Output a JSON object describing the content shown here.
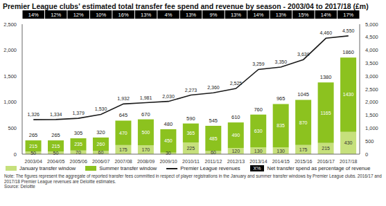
{
  "chart_data": {
    "type": "bar",
    "title": "Premier League clubs' estimated total transfer fee spend and revenue by season - 2003/04 to 2017/18 (£m)",
    "categories": [
      "2003/04",
      "2004/05",
      "2005/06",
      "2006/07",
      "2007/08",
      "2008/09",
      "2009/10",
      "2010/11",
      "2011/12",
      "2012/13",
      "2013/14",
      "2014/15",
      "2015/16",
      "2016/17",
      "2017/18"
    ],
    "stacked": true,
    "data_labels": true,
    "grid": false,
    "legend": "bottom",
    "series": [
      {
        "name": "January transfer window",
        "type": "bar",
        "color": "#c6e07c",
        "values": [
          50,
          50,
          70,
          60,
          175,
          170,
          30,
          225,
          60,
          120,
          130,
          130,
          175,
          215,
          430
        ]
      },
      {
        "name": "Summer transfer window",
        "type": "bar",
        "color": "#8cc21f",
        "values": [
          215,
          215,
          235,
          260,
          470,
          500,
          450,
          365,
          485,
          490,
          630,
          835,
          870,
          1165,
          1430
        ]
      },
      {
        "name": "Premier League revenues",
        "type": "line",
        "axis": "y2",
        "color": "#1a1a1a",
        "marker": "none",
        "values": [
          1326,
          1334,
          1379,
          1530,
          1932,
          1981,
          2030,
          2273,
          2360,
          2525,
          3259,
          3350,
          3639,
          4460,
          4550
        ],
        "value_labels": [
          "1,326",
          "1,334",
          "1,379",
          "1,530",
          "1,932",
          "1,981",
          "2,030",
          "2,273",
          "2,360",
          "2,525",
          "3,259",
          "3,350",
          "3,639",
          "4,460",
          "4,550"
        ]
      }
    ],
    "totals": [
      265,
      265,
      305,
      320,
      645,
      670,
      480,
      590,
      545,
      610,
      760,
      965,
      1045,
      1380,
      1860
    ],
    "net_spend_pct": {
      "name": "Net transfer spend as percentage of revenue",
      "symbol": "X%",
      "color": "#000000",
      "values": [
        14,
        12,
        12,
        10,
        16,
        13,
        4,
        13,
        9,
        13,
        14,
        13,
        15,
        14,
        17
      ],
      "value_labels": [
        "14%",
        "12%",
        "12%",
        "10%",
        "16%",
        "13%",
        "4%",
        "13%",
        "9%",
        "13%",
        "14%",
        "13%",
        "15%",
        "14%",
        "17%"
      ]
    },
    "ylim": [
      0,
      2500
    ],
    "yticks": [
      0,
      500,
      {
        "value": 1000,
        "label": "1,000"
      },
      {
        "value": 1500,
        "label": "1,500"
      },
      {
        "value": 2000,
        "label": "2,000"
      },
      {
        "value": 2500,
        "label": "2,500"
      }
    ],
    "y2lim": [
      0,
      5000
    ],
    "y2ticks": [
      0,
      500,
      {
        "value": 1000,
        "label": "1,000"
      },
      {
        "value": 1500,
        "label": "1,500"
      },
      {
        "value": 2000,
        "label": "2,000"
      },
      {
        "value": 2500,
        "label": "2,500"
      },
      {
        "value": 3000,
        "label": "3,000"
      },
      {
        "value": 3500,
        "label": "3,500"
      },
      {
        "value": 4000,
        "label": "4,000"
      },
      {
        "value": 4500,
        "label": "4,500"
      },
      {
        "value": 5000,
        "label": "5,000"
      }
    ],
    "note": "Note: The figures represent the aggregate of reported transfer fees committed in respect of player registrations in the January and summer transfer windows by Premier League clubs. 2016/17 and 2017/18 Premier League revenues are Deloitte estimates.",
    "source": "Source: Deloitte"
  }
}
